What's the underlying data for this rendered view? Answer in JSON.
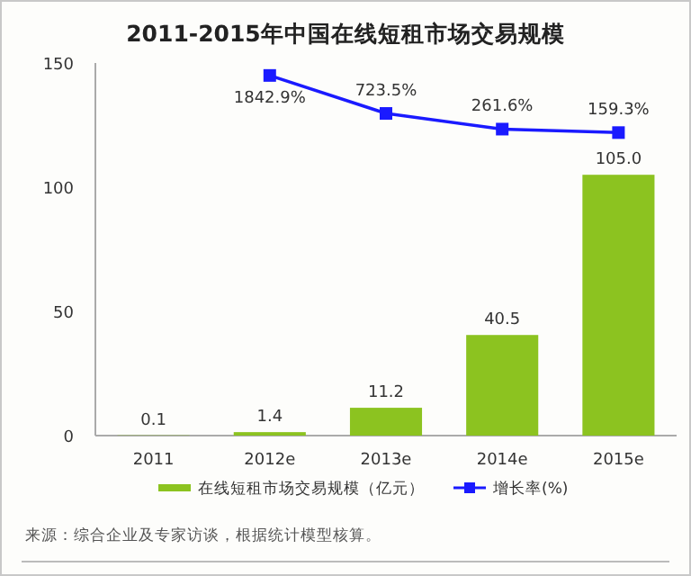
{
  "chart_data": {
    "type": "bar",
    "title": "2011-2015年中国在线短租市场交易规模",
    "categories": [
      "2011",
      "2012e",
      "2013e",
      "2014e",
      "2015e"
    ],
    "series": [
      {
        "name": "在线短租市场交易规模（亿元）",
        "color": "#8cc320",
        "values": [
          0.1,
          1.4,
          11.2,
          40.5,
          105.0
        ],
        "value_labels": [
          "0.1",
          "1.4",
          "11.2",
          "40.5",
          "105.0"
        ]
      },
      {
        "name": "增长率(%)",
        "type": "line",
        "axis": "y2",
        "color": "#1a1aff",
        "marker": "square",
        "values": [
          null,
          1842.9,
          723.5,
          261.6,
          159.3
        ],
        "value_labels": [
          null,
          "1842.9%",
          "723.5%",
          "261.6%",
          "159.3%"
        ]
      }
    ],
    "ylim": [
      0,
      150
    ],
    "yticks": [
      0,
      50,
      100,
      150
    ],
    "y2lim": [
      -8770,
      2210
    ],
    "grid": false,
    "legend": "bottom",
    "tick_labels": "xy",
    "annotations": [
      "来源：综合企业及专家访谈，根据统计模型核算。"
    ]
  }
}
